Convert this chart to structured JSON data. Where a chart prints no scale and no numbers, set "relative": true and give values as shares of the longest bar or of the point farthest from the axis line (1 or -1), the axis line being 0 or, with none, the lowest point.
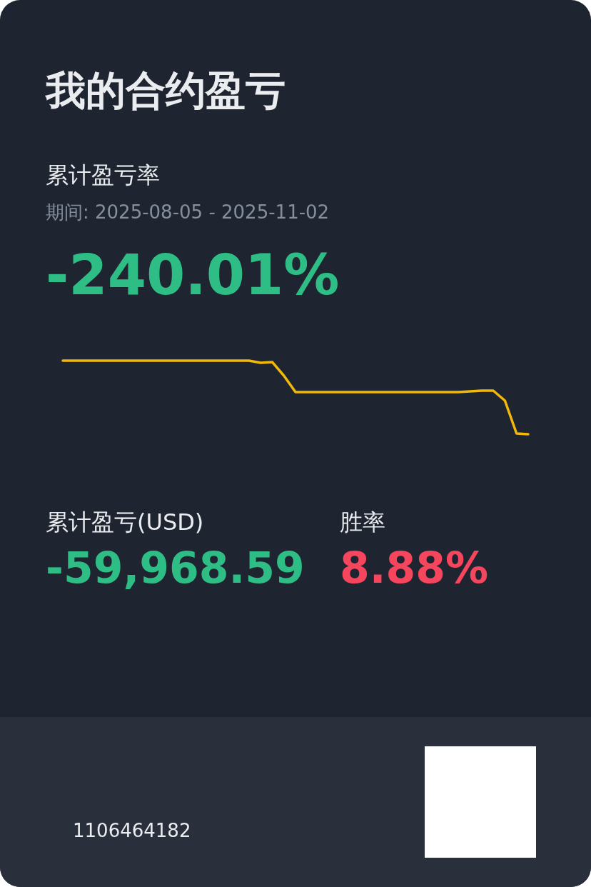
{
  "chart_data": {
    "type": "line",
    "title": "我的合约盈亏",
    "subtitle": "累计盈亏率",
    "relative": true,
    "marker": "none",
    "line_style": "solid",
    "grid": false,
    "categories": [
      null,
      null,
      null,
      null,
      null,
      null,
      null,
      null,
      null,
      null,
      null,
      null,
      null,
      null,
      null,
      null,
      null,
      null,
      null,
      null,
      null,
      null,
      null,
      null,
      null,
      null,
      null,
      null,
      null,
      null,
      null,
      null,
      null,
      null,
      null,
      null,
      null,
      null,
      null,
      null,
      null
    ],
    "series": [
      {
        "color": "#f0b90b",
        "values": [
          1,
          1,
          1,
          1,
          1,
          1,
          1,
          1,
          1,
          1,
          1,
          1,
          1,
          1,
          1,
          1,
          1,
          0.971,
          0.981,
          0.796,
          0.573,
          0.573,
          0.573,
          0.573,
          0.573,
          0.573,
          0.573,
          0.573,
          0.573,
          0.573,
          0.573,
          0.573,
          0.573,
          0.573,
          0.573,
          0.583,
          0.592,
          0.592,
          0.456,
          0.01,
          0
        ]
      }
    ],
    "annotations": [
      "期间: 2025-08-05 - 2025-11-02",
      "-240.01%",
      "累计盈亏(USD)",
      "-59,968.59",
      "胜率",
      "8.88%",
      "1106464182"
    ]
  }
}
